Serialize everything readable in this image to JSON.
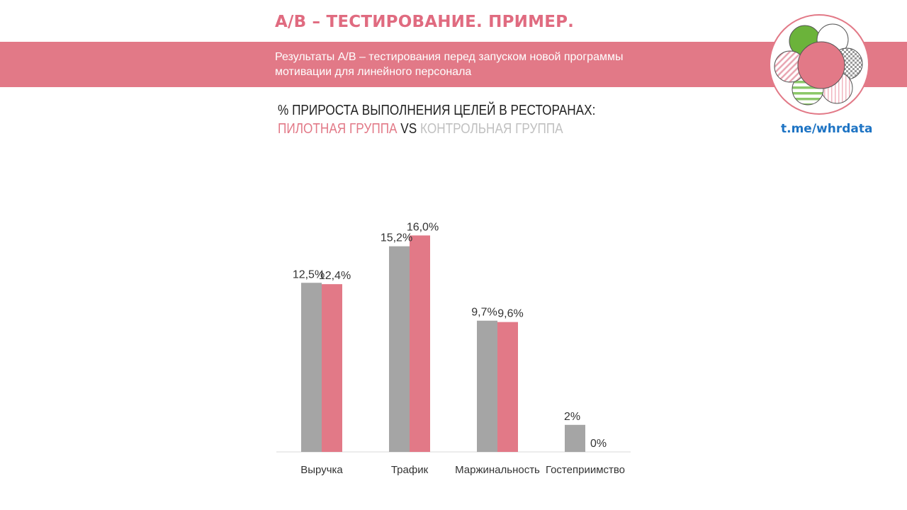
{
  "header": {
    "title": "A/B – ТЕСТИРОВАНИЕ. ПРИМЕР.",
    "subtitle": "Результаты A/B – тестирования перед запуском новой программы мотивации для линейного персонала"
  },
  "chart_heading": {
    "line1": "% ПРИРОСТА ВЫПОЛНЕНИЯ ЦЕЛЕЙ В РЕСТОРАНАХ:",
    "pilot": "ПИЛОТНАЯ ГРУППА",
    "vs": " VS ",
    "control": "КОНТРОЛЬНАЯ ГРУППА"
  },
  "logo": {
    "icon": "flower-circles-logo-icon",
    "link": "t.me/whrdata"
  },
  "colors": {
    "accent_pink": "#e27987",
    "control_gray": "#a5a5a5",
    "title_pink": "#e06b80",
    "link_blue": "#1e74c4",
    "control_text": "#c0c0c0",
    "logo_green": "#6bb33a"
  },
  "chart_data": {
    "type": "bar",
    "categories": [
      "Выручка",
      "Трафик",
      "Маржинальность",
      "Гостеприимство"
    ],
    "series": [
      {
        "name": "КОНТРОЛЬНАЯ ГРУППА",
        "color": "#a5a5a5",
        "values": [
          12.5,
          15.2,
          9.7,
          2
        ],
        "labels": [
          "12,5%",
          "15,2%",
          "9,7%",
          "2%"
        ]
      },
      {
        "name": "ПИЛОТНАЯ ГРУППА",
        "color": "#e27987",
        "values": [
          12.4,
          16.0,
          9.6,
          0
        ],
        "labels": [
          "12,4%",
          "16,0%",
          "9,6%",
          "0%"
        ]
      }
    ],
    "title": "% ПРИРОСТА ВЫПОЛНЕНИЯ ЦЕЛЕЙ В РЕСТОРАНАХ:",
    "xlabel": "",
    "ylabel": "",
    "ylim": [
      0,
      16
    ],
    "grid": false,
    "legend": "none"
  }
}
